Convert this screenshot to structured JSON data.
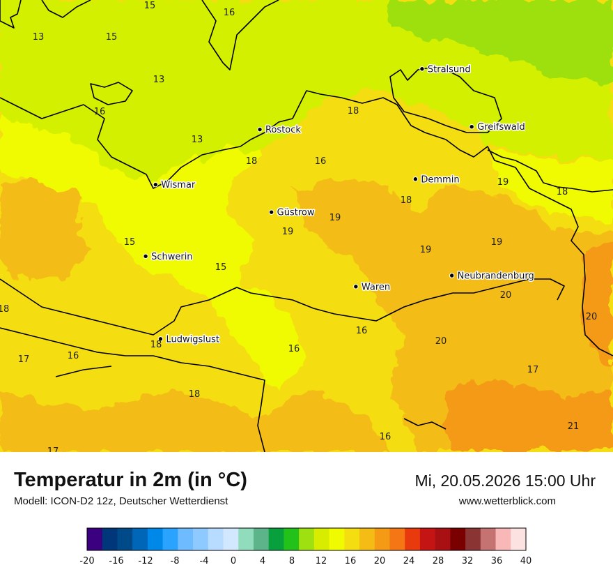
{
  "map": {
    "cities": [
      {
        "name": "Stralsund",
        "lon": 13.08,
        "lat": 54.31
      },
      {
        "name": "Rostock",
        "lon": 12.1,
        "lat": 54.09
      },
      {
        "name": "Greifswald",
        "lon": 13.38,
        "lat": 54.1
      },
      {
        "name": "Wismar",
        "lon": 11.47,
        "lat": 53.89
      },
      {
        "name": "Demmin",
        "lon": 13.04,
        "lat": 53.91
      },
      {
        "name": "Güstrow",
        "lon": 12.17,
        "lat": 53.79
      },
      {
        "name": "Schwerin",
        "lon": 11.41,
        "lat": 53.63
      },
      {
        "name": "Neubrandenburg",
        "lon": 13.26,
        "lat": 53.56
      },
      {
        "name": "Waren",
        "lon": 12.68,
        "lat": 53.52
      },
      {
        "name": "Ludwigslust",
        "lon": 11.5,
        "lat": 53.33
      }
    ],
    "temperature_labels": [
      {
        "text": "15",
        "value": 15
      },
      {
        "text": "16",
        "value": 16
      },
      {
        "text": "13",
        "value": 13
      },
      {
        "text": "15",
        "value": 15
      },
      {
        "text": "13",
        "value": 13
      },
      {
        "text": "16",
        "value": 16
      },
      {
        "text": "13",
        "value": 13
      },
      {
        "text": "18",
        "value": 18
      },
      {
        "text": "18",
        "value": 18
      },
      {
        "text": "16",
        "value": 16
      },
      {
        "text": "19",
        "value": 19
      },
      {
        "text": "18",
        "value": 18
      },
      {
        "text": "18",
        "value": 18
      },
      {
        "text": "19",
        "value": 19
      },
      {
        "text": "19",
        "value": 19
      },
      {
        "text": "15",
        "value": 15
      },
      {
        "text": "19",
        "value": 19
      },
      {
        "text": "19",
        "value": 19
      },
      {
        "text": "15",
        "value": 15
      },
      {
        "text": "20",
        "value": 20
      },
      {
        "text": "18",
        "value": 18
      },
      {
        "text": "20",
        "value": 20
      },
      {
        "text": "16",
        "value": 16
      },
      {
        "text": "18",
        "value": 18
      },
      {
        "text": "16",
        "value": 16
      },
      {
        "text": "20",
        "value": 20
      },
      {
        "text": "17",
        "value": 17
      },
      {
        "text": "16",
        "value": 16
      },
      {
        "text": "17",
        "value": 17
      },
      {
        "text": "18",
        "value": 18
      },
      {
        "text": "21",
        "value": 21
      },
      {
        "text": "16",
        "value": 16
      },
      {
        "text": "17",
        "value": 17
      }
    ]
  },
  "footer": {
    "title": "Temperatur in 2m (in °C)",
    "model": "Modell: ICON-D2 12z, Deutscher Wetterdienst",
    "datetime": "Mi, 20.05.2026 15:00 Uhr",
    "website": "www.wetterblick.com"
  },
  "legend": {
    "tick_labels": [
      "-20",
      "-16",
      "-12",
      "-8",
      "-4",
      "0",
      "4",
      "8",
      "12",
      "16",
      "20",
      "24",
      "28",
      "32",
      "36",
      "40"
    ],
    "colors": [
      "#3a0080",
      "#00367a",
      "#004a8a",
      "#0066b8",
      "#0088e8",
      "#2aa3ff",
      "#6ebcff",
      "#8ecaff",
      "#b8dcff",
      "#d2e8ff",
      "#90dcbc",
      "#5db38a",
      "#08a03c",
      "#23c21a",
      "#9ee010",
      "#d8ec00",
      "#f0fa00",
      "#f4dd10",
      "#f4bc14",
      "#f49a14",
      "#f47614",
      "#e83a0c",
      "#c41414",
      "#a81014",
      "#7a0000",
      "#8a3434",
      "#c47272",
      "#f8b8b8",
      "#fde2e2"
    ]
  }
}
